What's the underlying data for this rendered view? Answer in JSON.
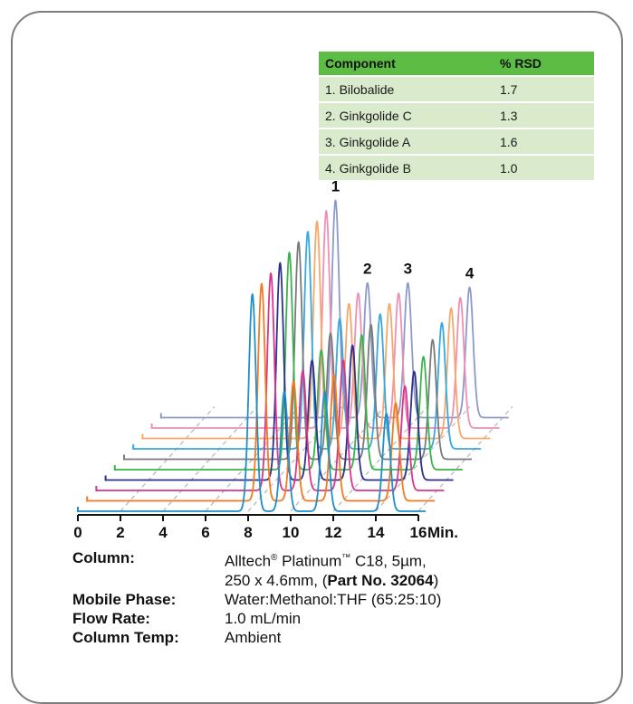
{
  "table": {
    "headers": [
      "Component",
      "% RSD"
    ],
    "rows": [
      [
        "1.  Bilobalide",
        "1.7"
      ],
      [
        "2.  Ginkgolide C",
        "1.3"
      ],
      [
        "3.  Ginkgolide A",
        "1.6"
      ],
      [
        "4.  Ginkgolide B",
        "1.0"
      ]
    ]
  },
  "chart_data": {
    "type": "line",
    "title": "",
    "xlabel": "Min.",
    "x_ticks": [
      "0",
      "2",
      "4",
      "6",
      "8",
      "10",
      "12",
      "14",
      "16"
    ],
    "xlim": [
      0,
      16
    ],
    "peak_labels": [
      "1",
      "2",
      "3",
      "4"
    ],
    "peak_times_min": [
      8.2,
      9.7,
      11.6,
      14.5
    ],
    "series": [
      {
        "color": "#1f8fc8",
        "peak_heights": [
          1.0,
          0.55,
          0.55,
          0.45
        ]
      },
      {
        "color": "#f47a20",
        "peak_heights": [
          1.0,
          0.55,
          0.58,
          0.45
        ]
      },
      {
        "color": "#d9358e",
        "peak_heights": [
          1.0,
          0.55,
          0.6,
          0.48
        ]
      },
      {
        "color": "#2e2f8e",
        "peak_heights": [
          1.0,
          0.55,
          0.62,
          0.5
        ]
      },
      {
        "color": "#3bb34a",
        "peak_heights": [
          1.0,
          0.55,
          0.62,
          0.52
        ]
      },
      {
        "color": "#7a7a7a",
        "peak_heights": [
          1.0,
          0.58,
          0.62,
          0.55
        ]
      },
      {
        "color": "#35a9e0",
        "peak_heights": [
          1.0,
          0.6,
          0.62,
          0.58
        ]
      },
      {
        "color": "#f7a869",
        "peak_heights": [
          1.0,
          0.62,
          0.62,
          0.6
        ]
      },
      {
        "color": "#ef8fb5",
        "peak_heights": [
          1.0,
          0.62,
          0.62,
          0.6
        ]
      },
      {
        "color": "#8c9ac9",
        "peak_heights": [
          1.0,
          0.62,
          0.62,
          0.6
        ]
      }
    ]
  },
  "conditions": {
    "column_label": "Column:",
    "column_value_line1_pre": "Alltech",
    "column_reg": "®",
    "column_value_line1_mid": " Platinum",
    "column_tm": "™",
    "column_value_line1_post": " C18, 5µm,",
    "column_value_line2_pre": "250 x 4.6mm, (",
    "column_part": "Part No. 32064",
    "column_value_line2_post": ")",
    "mobile_label": "Mobile Phase:",
    "mobile_value": "Water:Methanol:THF (65:25:10)",
    "flow_label": "Flow Rate:",
    "flow_value": "1.0 mL/min",
    "temp_label": "Column Temp:",
    "temp_value": "Ambient"
  }
}
